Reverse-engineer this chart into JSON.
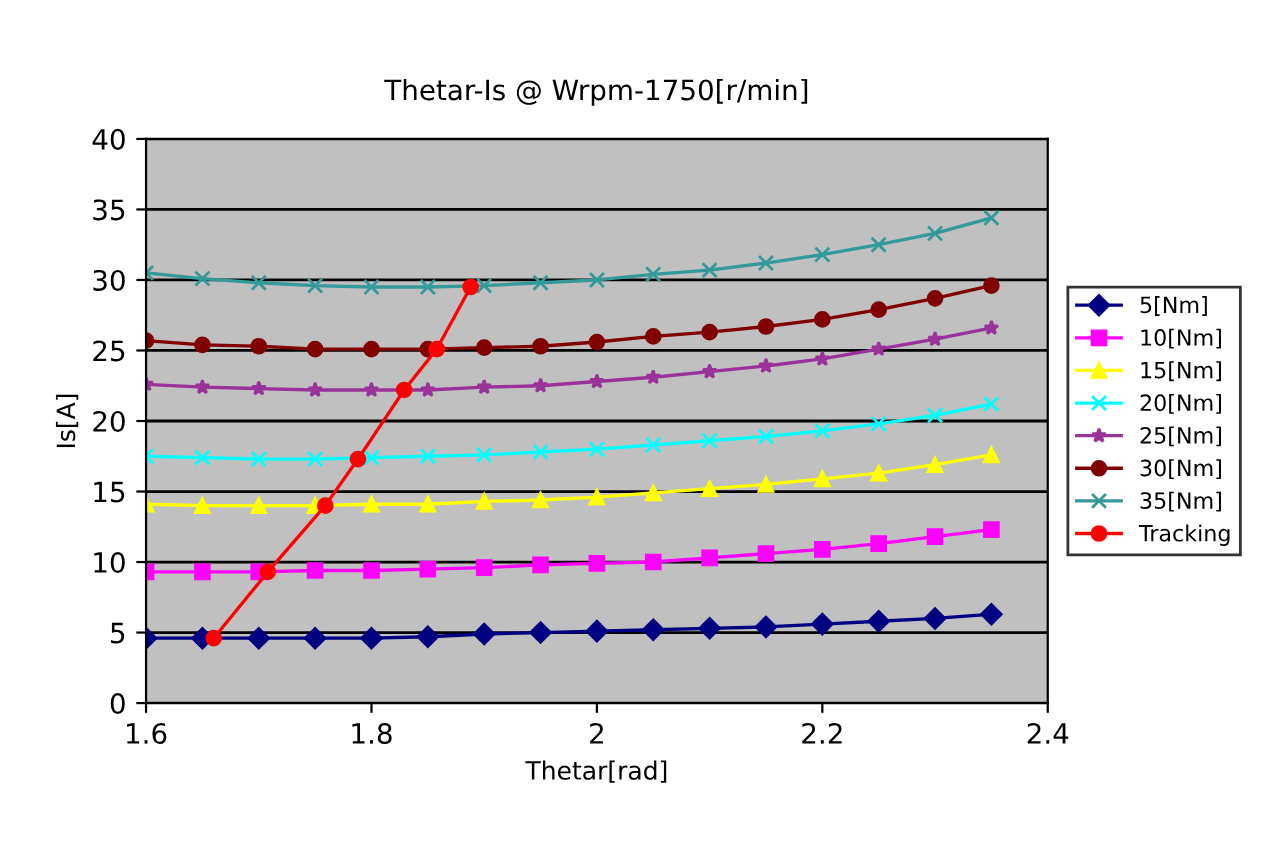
{
  "chart_data": {
    "type": "line",
    "title": "Thetar-Is @ Wrpm-1750[r/min]",
    "xlabel": "Thetar[rad]",
    "ylabel": "Is[A]",
    "x": [
      1.6,
      1.65,
      1.7,
      1.75,
      1.8,
      1.85,
      1.9,
      1.95,
      2.0,
      2.05,
      2.1,
      2.15,
      2.2,
      2.25,
      2.3,
      2.35
    ],
    "xlim": [
      1.6,
      2.4
    ],
    "xticks": [
      {
        "value": 1.6,
        "label": "1.6"
      },
      {
        "value": 1.8,
        "label": "1.8"
      },
      {
        "value": 2.0,
        "label": "2"
      },
      {
        "value": 2.2,
        "label": "2.2"
      },
      {
        "value": 2.4,
        "label": "2.4"
      }
    ],
    "ylim": [
      0,
      40
    ],
    "yticks": [
      0,
      5,
      10,
      15,
      20,
      25,
      30,
      35,
      40
    ],
    "grid": "y",
    "legend": "right",
    "line_style": "solid",
    "series": [
      {
        "name": "5[Nm]",
        "color": "#000080",
        "marker": "diamond",
        "values": [
          4.6,
          4.6,
          4.6,
          4.6,
          4.6,
          4.7,
          4.9,
          5.0,
          5.1,
          5.2,
          5.3,
          5.4,
          5.6,
          5.8,
          6.0,
          6.3
        ]
      },
      {
        "name": "10[Nm]",
        "color": "#ff00ff",
        "marker": "square",
        "values": [
          9.3,
          9.3,
          9.3,
          9.4,
          9.4,
          9.5,
          9.6,
          9.8,
          9.9,
          10.0,
          10.3,
          10.6,
          10.9,
          11.3,
          11.8,
          12.3
        ]
      },
      {
        "name": "15[Nm]",
        "color": "#ffff00",
        "marker": "triangle",
        "values": [
          14.1,
          14.0,
          14.0,
          14.0,
          14.1,
          14.1,
          14.3,
          14.4,
          14.6,
          14.9,
          15.2,
          15.5,
          15.9,
          16.3,
          16.9,
          17.6
        ]
      },
      {
        "name": "20[Nm]",
        "color": "#00ffff",
        "marker": "cross",
        "values": [
          17.5,
          17.4,
          17.3,
          17.3,
          17.4,
          17.5,
          17.6,
          17.8,
          18.0,
          18.3,
          18.6,
          18.9,
          19.3,
          19.8,
          20.4,
          21.2
        ]
      },
      {
        "name": "25[Nm]",
        "color": "#993399",
        "marker": "star",
        "values": [
          22.6,
          22.4,
          22.3,
          22.2,
          22.2,
          22.2,
          22.4,
          22.5,
          22.8,
          23.1,
          23.5,
          23.9,
          24.4,
          25.1,
          25.8,
          26.6
        ]
      },
      {
        "name": "30[Nm]",
        "color": "#800000",
        "marker": "circle",
        "values": [
          25.7,
          25.4,
          25.3,
          25.1,
          25.1,
          25.1,
          25.2,
          25.3,
          25.6,
          26.0,
          26.3,
          26.7,
          27.2,
          27.9,
          28.7,
          29.6
        ]
      },
      {
        "name": "35[Nm]",
        "color": "#339999",
        "marker": "cross",
        "values": [
          30.5,
          30.1,
          29.8,
          29.6,
          29.5,
          29.5,
          29.6,
          29.8,
          30.0,
          30.4,
          30.7,
          31.2,
          31.8,
          32.5,
          33.3,
          34.4
        ]
      },
      {
        "name": "Tracking",
        "color": "#ff0000",
        "marker": "circle",
        "x": [
          1.66,
          1.708,
          1.759,
          1.788,
          1.829,
          1.858,
          1.888
        ],
        "values": [
          4.6,
          9.3,
          14.0,
          17.3,
          22.2,
          25.1,
          29.5
        ]
      }
    ]
  }
}
